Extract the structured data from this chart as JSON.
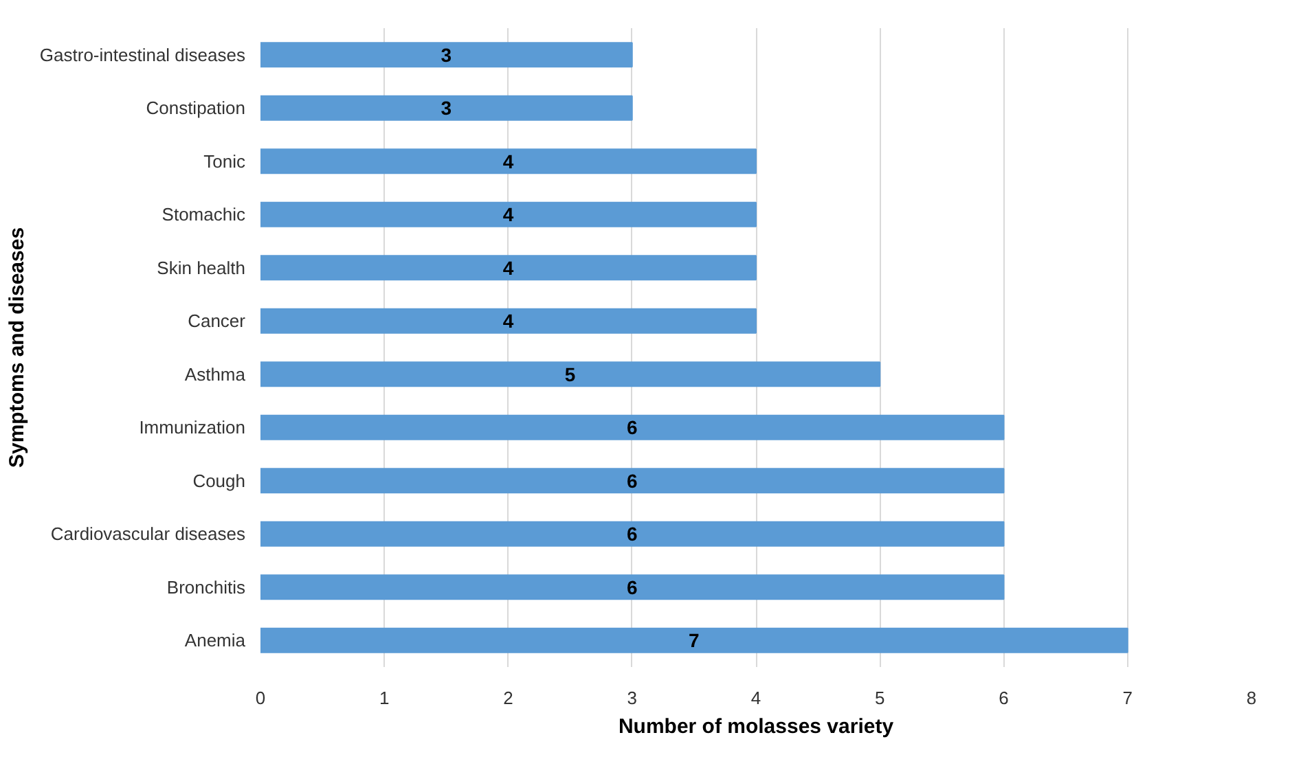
{
  "chart_data": {
    "type": "bar",
    "orientation": "horizontal",
    "xlabel": "Number of molasses variety",
    "ylabel": "Symptoms and diseases",
    "categories": [
      "Gastro-intestinal diseases",
      "Constipation",
      "Tonic",
      "Stomachic",
      "Skin health",
      "Cancer",
      "Asthma",
      "Immunization",
      "Cough",
      "Cardiovascular diseases",
      "Bronchitis",
      "Anemia"
    ],
    "values": [
      3,
      3,
      4,
      4,
      4,
      4,
      5,
      6,
      6,
      6,
      6,
      7
    ],
    "color": "#5b9bd5",
    "xlim": [
      0,
      8
    ],
    "xticks": [
      0,
      1,
      2,
      3,
      4,
      5,
      6,
      7,
      8
    ],
    "grid": "x",
    "data_labels": true
  }
}
